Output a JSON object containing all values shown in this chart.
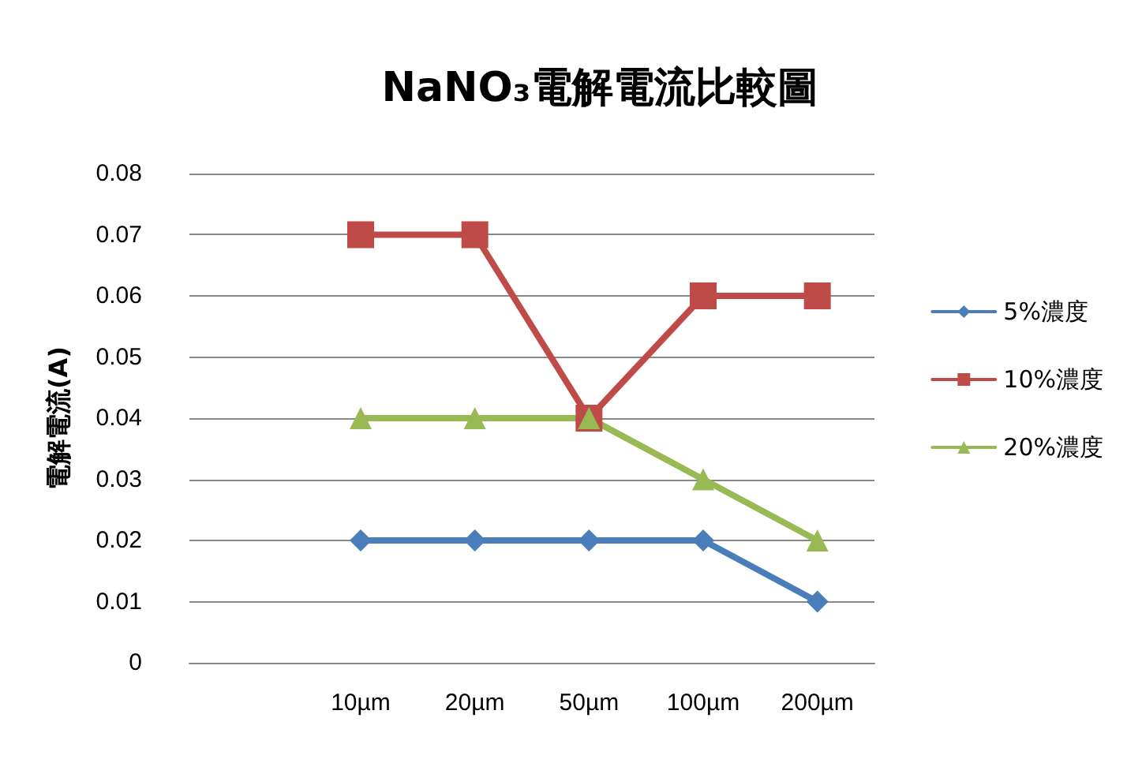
{
  "chart_data": {
    "type": "line",
    "title": "NaNO₃電解電流比較圖",
    "ylabel": "電解電流(A)",
    "categories": [
      null,
      "10µm",
      "20µm",
      "50µm",
      "100µm",
      "200µm"
    ],
    "series": [
      {
        "name": "5%濃度",
        "color": "#4a7ebb",
        "marker": "diamond",
        "values": [
          null,
          0.02,
          0.02,
          0.02,
          0.02,
          0.01
        ]
      },
      {
        "name": "10%濃度",
        "color": "#be4b48",
        "marker": "square",
        "values": [
          null,
          0.07,
          0.07,
          0.04,
          0.06,
          0.06
        ]
      },
      {
        "name": "20%濃度",
        "color": "#98b954",
        "marker": "triangle",
        "values": [
          null,
          0.04,
          0.04,
          0.04,
          0.03,
          0.02
        ]
      }
    ],
    "ylim": [
      0,
      0.08
    ],
    "yticks": [
      0,
      0.01,
      0.02,
      0.03,
      0.04,
      0.05,
      0.06,
      0.07,
      0.08
    ],
    "grid": "y",
    "legend": "right",
    "line_style": "solid"
  }
}
